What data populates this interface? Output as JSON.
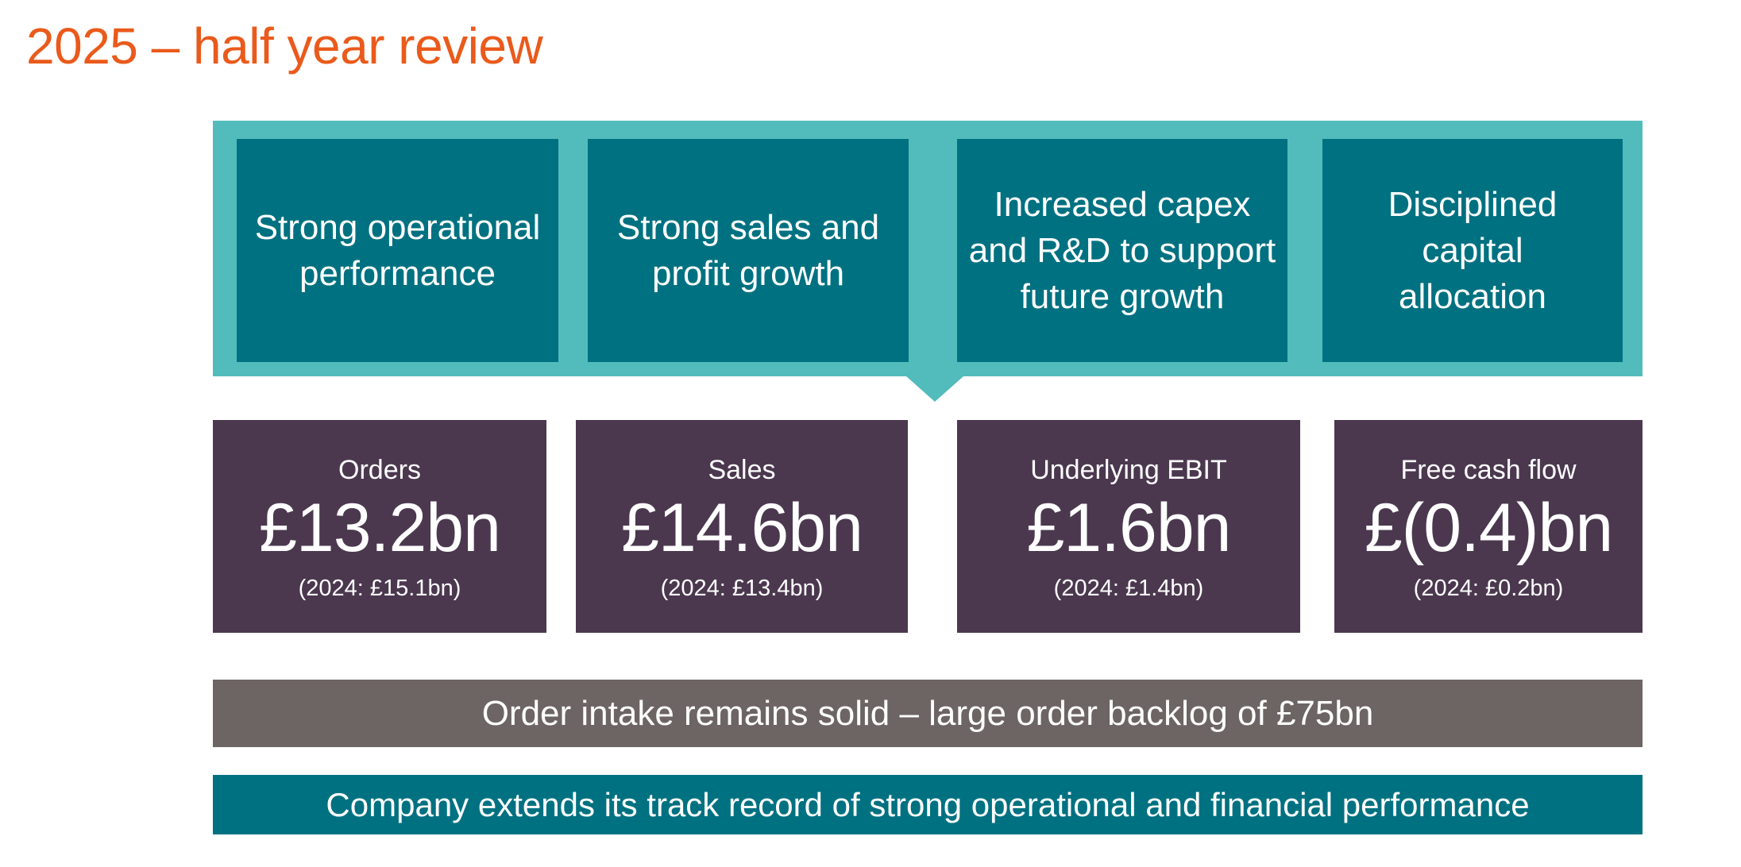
{
  "slide": {
    "title": "2025 – half year review"
  },
  "themes": [
    {
      "line1": "Strong operational",
      "line2": "performance"
    },
    {
      "line1": "Strong sales and",
      "line2": "profit growth"
    },
    {
      "line1": "Increased capex",
      "line2": "and R&D to support",
      "line3": "future growth"
    },
    {
      "line1": "Disciplined capital",
      "line2": "allocation"
    }
  ],
  "metrics": [
    {
      "label": "Orders",
      "value": "£13.2bn",
      "comparison": "(2024: £15.1bn)"
    },
    {
      "label": "Sales",
      "value": "£14.6bn",
      "comparison": "(2024: £13.4bn)"
    },
    {
      "label": "Underlying EBIT",
      "value": "£1.6bn",
      "comparison": "(2024: £1.4bn)"
    },
    {
      "label": "Free cash flow",
      "value": "£(0.4)bn",
      "comparison": "(2024: £0.2bn)"
    }
  ],
  "banners": {
    "backlog": "Order intake remains solid – large order backlog of £75bn",
    "track_record": "Company extends its track record of strong operational and financial performance"
  },
  "colors": {
    "title": "#ea5a1b",
    "frame": "#52bcbc",
    "theme_box": "#007181",
    "metric_box": "#4b384f",
    "grey_banner": "#6d6563",
    "teal_banner": "#007181"
  }
}
